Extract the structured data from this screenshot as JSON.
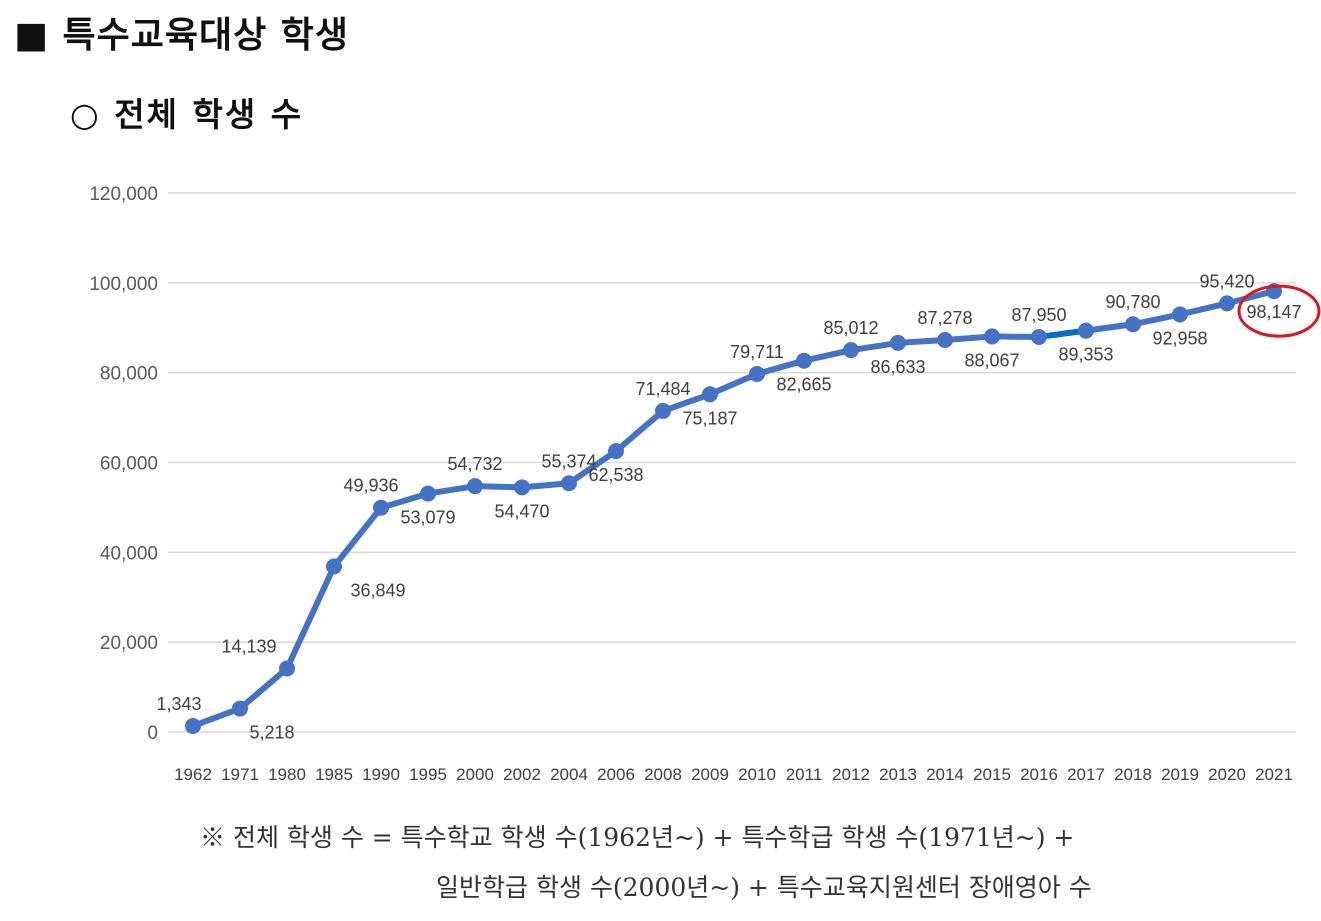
{
  "heading": "■ 특수교육대상 학생",
  "subheading": "○ 전체 학생 수",
  "chart_data": {
    "type": "line",
    "title": "",
    "xlabel": "",
    "ylabel": "",
    "ylim": [
      0,
      120000
    ],
    "yticks": [
      0,
      20000,
      40000,
      60000,
      80000,
      100000,
      120000
    ],
    "ytick_labels": [
      "0",
      "20,000",
      "40,000",
      "60,000",
      "80,000",
      "100,000",
      "120,000"
    ],
    "grid": true,
    "categories": [
      "1962",
      "1971",
      "1980",
      "1985",
      "1990",
      "1995",
      "2000",
      "2002",
      "2004",
      "2006",
      "2008",
      "2009",
      "2010",
      "2011",
      "2012",
      "2013",
      "2014",
      "2015",
      "2016",
      "2017",
      "2018",
      "2019",
      "2020",
      "2021"
    ],
    "series": [
      {
        "values": [
          1343,
          5218,
          14139,
          36849,
          49936,
          53079,
          54732,
          54470,
          55374,
          62538,
          71484,
          75187,
          79711,
          82665,
          85012,
          86633,
          87278,
          88067,
          87950,
          89353,
          90780,
          92958,
          95420,
          98147
        ],
        "labels": [
          "1,343",
          "5,218",
          "14,139",
          "36,849",
          "49,936",
          "53,079",
          "54,732",
          "54,470",
          "55,374",
          "62,538",
          "71,484",
          "75,187",
          "79,711",
          "82,665",
          "85,012",
          "86,633",
          "87,278",
          "88,067",
          "87,950",
          "89,353",
          "90,780",
          "92,958",
          "95,420",
          "98,147"
        ],
        "color": "#4472C4"
      }
    ],
    "highlight_segment_color": "#0070C0",
    "annotation": {
      "target": "2021",
      "shape": "circle",
      "color": "#E0141E"
    }
  },
  "footnote": {
    "line1": "※ 전체 학생 수 = 특수학교 학생 수(1962년~) + 특수학급 학생 수(1971년~) +",
    "line2": "일반학급 학생 수(2000년~) + 특수교육지원센터 장애영아 수"
  }
}
